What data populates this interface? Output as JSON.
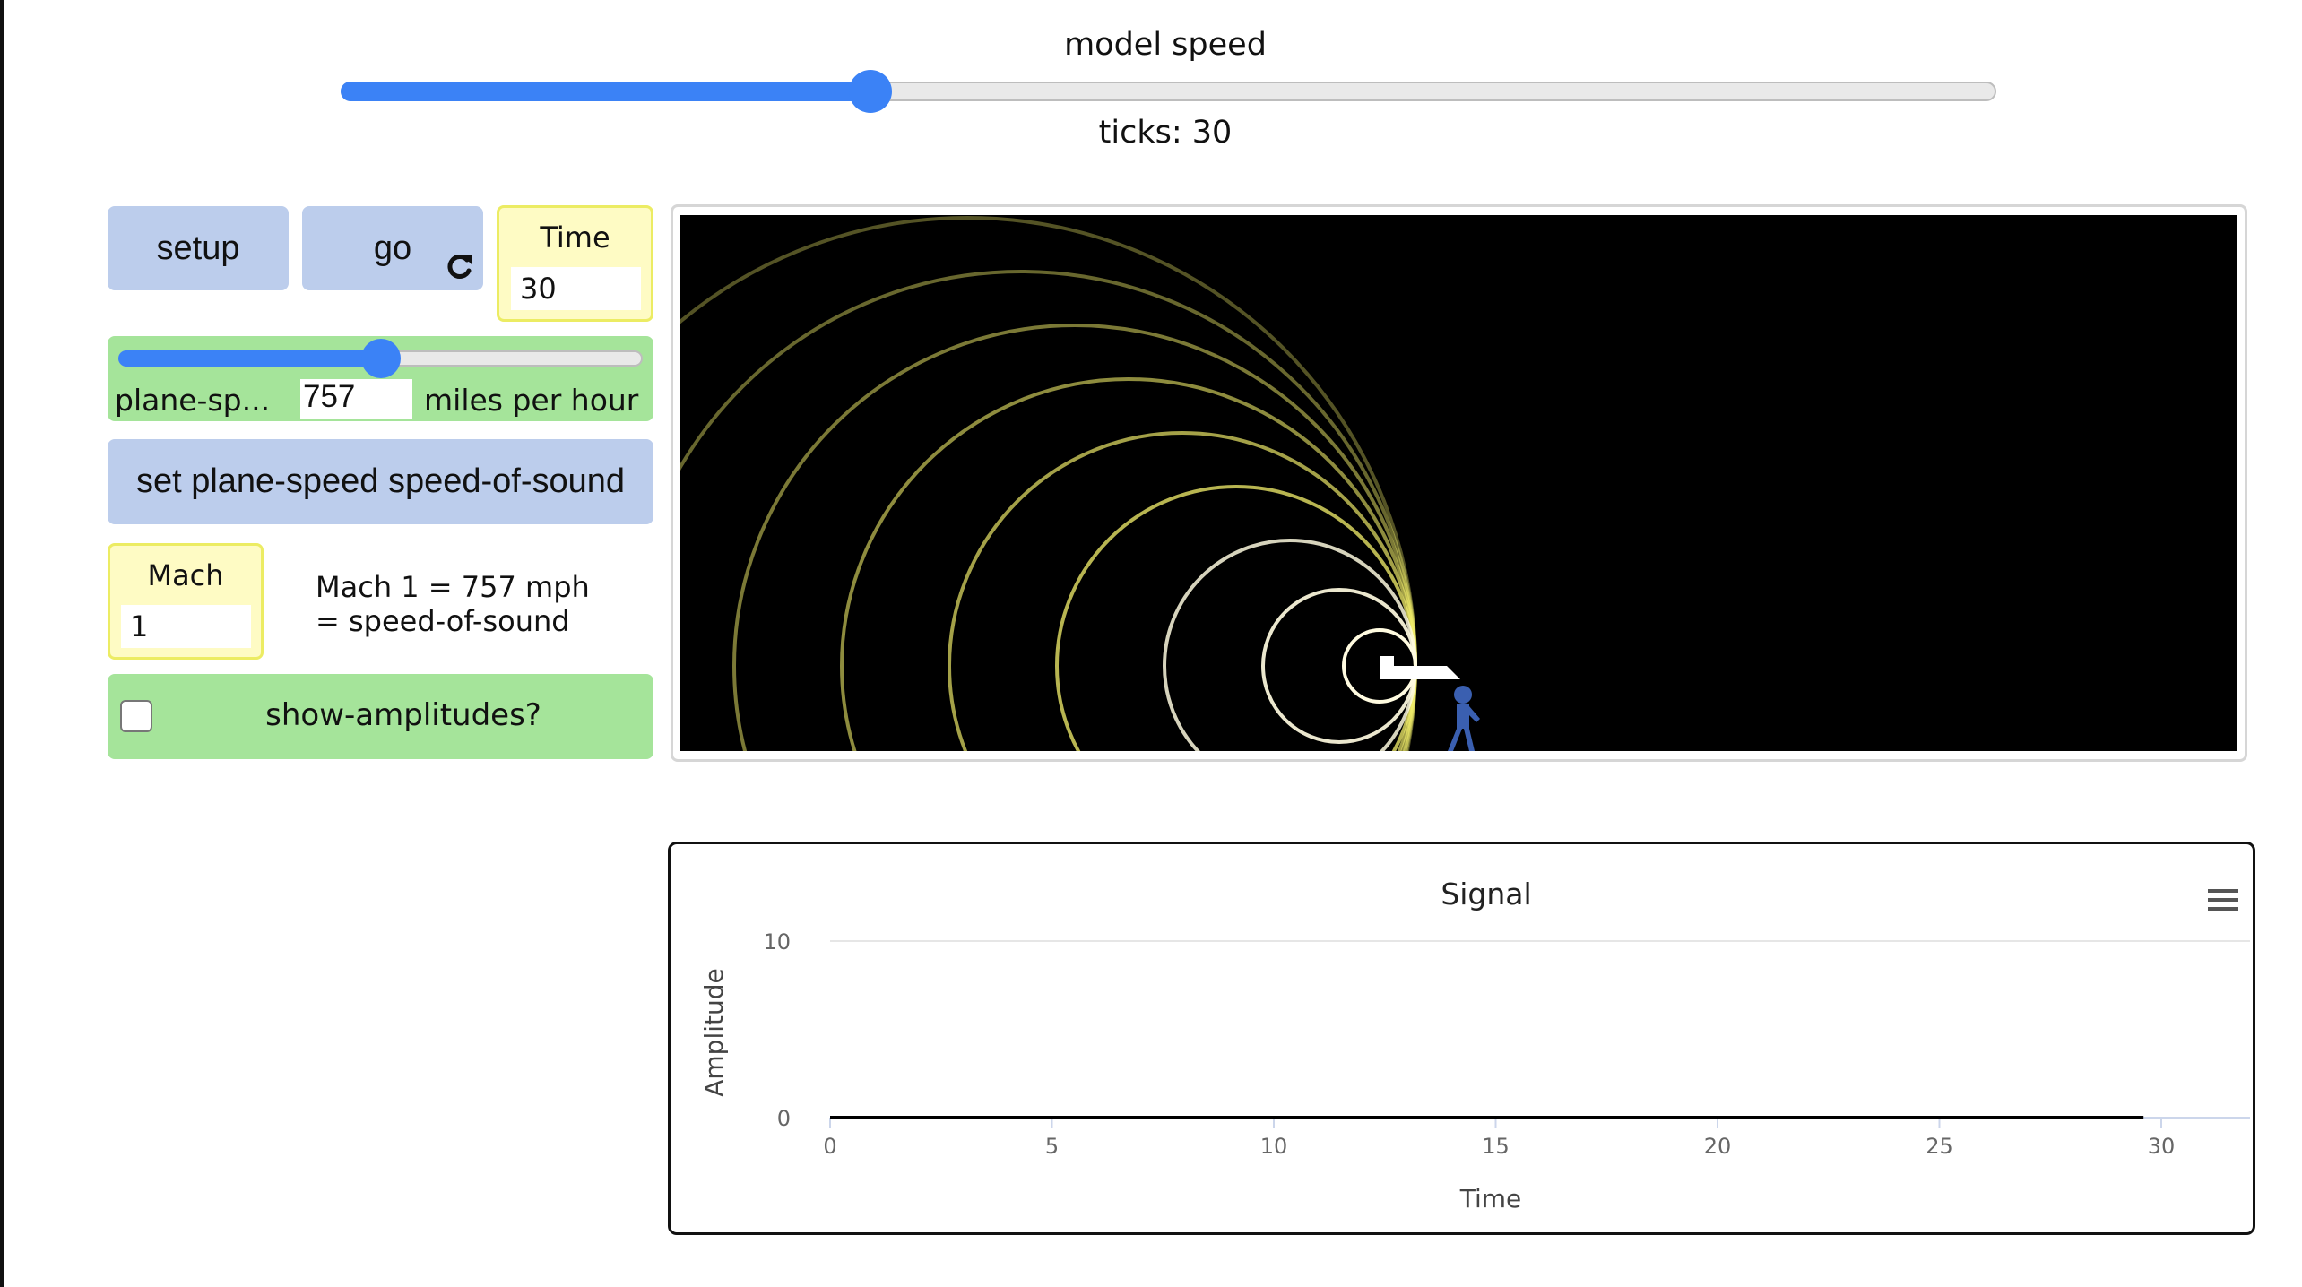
{
  "model_speed": {
    "label": "model speed",
    "value_fraction": 0.32
  },
  "ticks_label": "ticks: 30",
  "buttons": {
    "setup": "setup",
    "go": "go",
    "set_plane_speed": "set plane-speed speed-of-sound"
  },
  "time_monitor": {
    "label": "Time",
    "value": "30"
  },
  "plane_speed": {
    "label": "plane-sp...",
    "value": "757",
    "units": "miles per hour",
    "value_fraction": 0.5
  },
  "mach_monitor": {
    "label": "Mach",
    "value": "1"
  },
  "mach_note": {
    "line1": "Mach 1 = 757 mph",
    "line2": "= speed-of-sound"
  },
  "show_amplitudes": {
    "label": "show-amplitudes?",
    "checked": false
  },
  "icons": {
    "go_forever": "refresh-icon",
    "plot_menu": "hamburger-menu-icon"
  },
  "colors": {
    "accent": "#3b82f6",
    "button": "#bccdec",
    "monitor": "#fefbc4",
    "switch": "#a5e49a",
    "wave": "#f2ee6a"
  },
  "chart_data": {
    "type": "line",
    "title": "Signal",
    "xlabel": "Time",
    "ylabel": "Amplitude",
    "xlim": [
      0,
      32
    ],
    "ylim": [
      0,
      10
    ],
    "x_ticks": [
      "0",
      "5",
      "10",
      "15",
      "20",
      "25",
      "30"
    ],
    "y_ticks": [
      "0",
      "10"
    ],
    "series": [
      {
        "x": [
          0,
          29.6
        ],
        "values": [
          0,
          0
        ]
      }
    ]
  }
}
